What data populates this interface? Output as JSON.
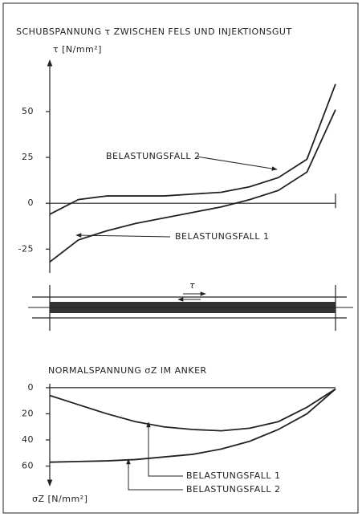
{
  "chart_data": [
    {
      "type": "line",
      "title": "SCHUBSPANNUNG τ ZWISCHEN FELS UND INJEKTIONSGUT",
      "y_label": "τ [N/mm²]",
      "categories": [
        null,
        null,
        null,
        null,
        null,
        null,
        null,
        null,
        null,
        null,
        null
      ],
      "series": [
        {
          "name": "BELASTUNGSFALL 2",
          "color": "#222222",
          "values": [
            -6,
            2,
            4,
            4,
            4,
            5,
            6,
            9,
            14,
            24,
            65
          ]
        },
        {
          "name": "BELASTUNGSFALL 1",
          "color": "#222222",
          "values": [
            -32,
            -20,
            -15,
            -11,
            -8,
            -5,
            -2,
            2,
            7,
            17,
            51
          ]
        }
      ],
      "ylim": [
        -38,
        78
      ],
      "yticks": [
        -25,
        0,
        25,
        50
      ]
    },
    {
      "type": "line",
      "title": "NORMALSPANNUNG σZ IM ANKER",
      "y_label": "σZ [N/mm²]",
      "categories": [
        null,
        null,
        null,
        null,
        null,
        null,
        null,
        null,
        null,
        null,
        null
      ],
      "series": [
        {
          "name": "BELASTUNGSFALL 1",
          "color": "#222222",
          "values": [
            6,
            13,
            20,
            26,
            30,
            32,
            33,
            31,
            26,
            15,
            1
          ]
        },
        {
          "name": "BELASTUNGSFALL 2",
          "color": "#222222",
          "values": [
            57,
            56.5,
            56,
            55,
            53,
            51,
            47,
            41,
            32,
            20,
            1
          ]
        }
      ],
      "ylim": [
        75,
        -3
      ],
      "yticks": [
        0,
        20,
        40,
        60
      ]
    }
  ],
  "diagram": {
    "label": "τ"
  }
}
